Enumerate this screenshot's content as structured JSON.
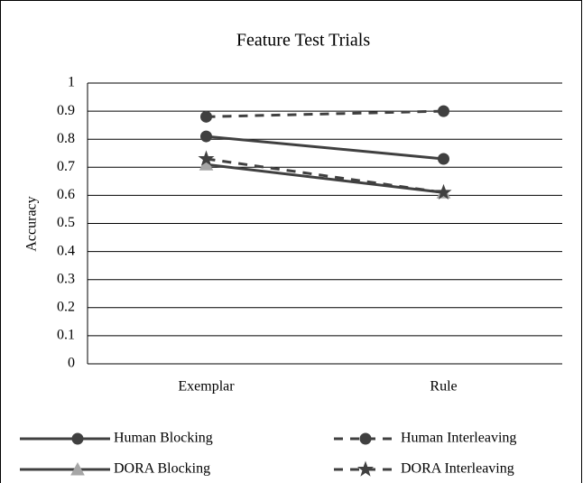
{
  "chart_data": {
    "type": "line",
    "title": "Feature Test Trials",
    "y_label": "Accuracy",
    "categories": [
      "Exemplar",
      "Rule"
    ],
    "series": [
      {
        "name": "Human Blocking",
        "color": "#404040",
        "dash": false,
        "marker": "circle",
        "values": [
          0.81,
          0.73
        ]
      },
      {
        "name": "Human Interleaving",
        "color": "#404040",
        "dash": true,
        "marker": "circle",
        "values": [
          0.88,
          0.9
        ]
      },
      {
        "name": "DORA Blocking",
        "color": "#404040",
        "dash": false,
        "marker": "triangle",
        "marker_color": "#a6a6a6",
        "values": [
          0.71,
          0.61
        ]
      },
      {
        "name": "DORA Interleaving",
        "color": "#404040",
        "dash": true,
        "marker": "star",
        "values": [
          0.73,
          0.61
        ]
      }
    ],
    "ylim": [
      0,
      1
    ],
    "yticks": [
      0,
      0.1,
      0.2,
      0.3,
      0.4,
      0.5,
      0.6,
      0.7,
      0.8,
      0.9,
      1
    ],
    "grid": true
  }
}
